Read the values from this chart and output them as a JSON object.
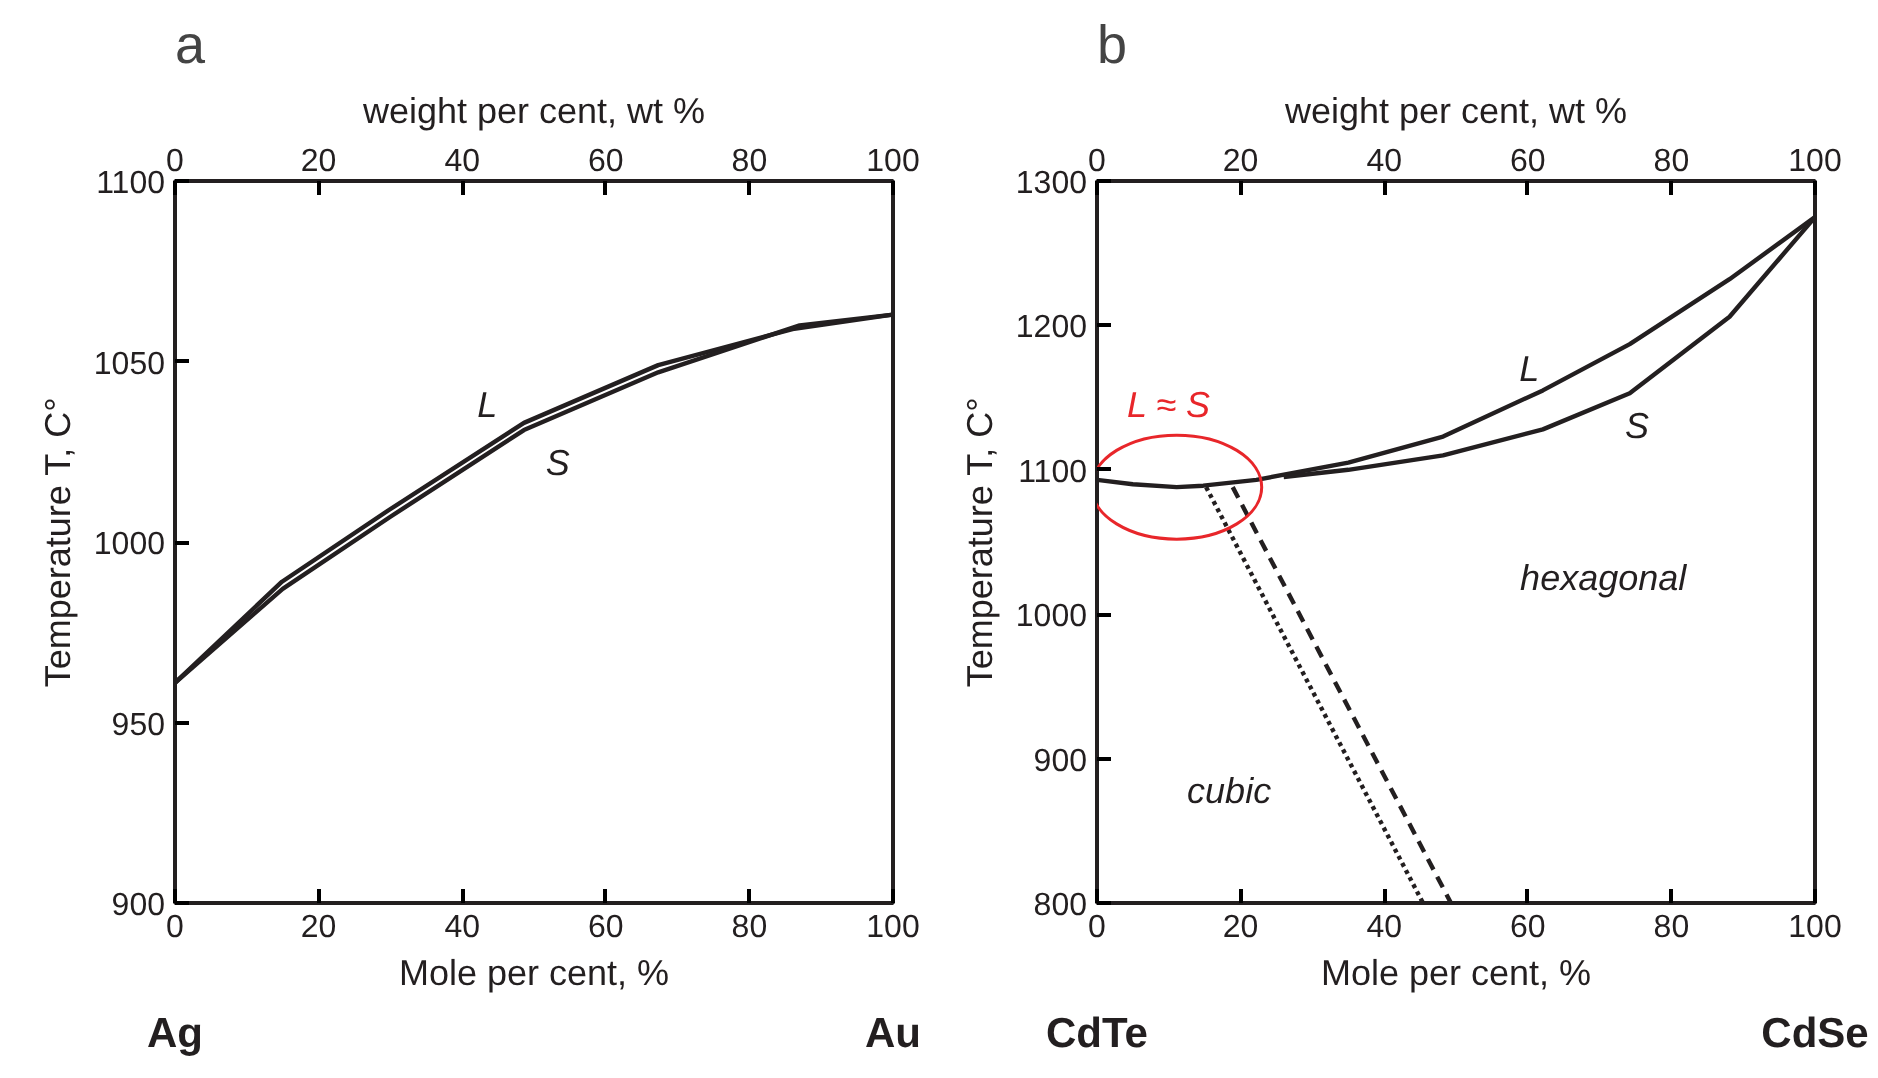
{
  "chart_data": [
    {
      "type": "line",
      "title": "a",
      "xlabel": "Mole per cent, %",
      "ylabel": "Temperature T, C°",
      "x2label": "weight per cent, wt %",
      "xlim": [
        0,
        100
      ],
      "xticks": [
        0,
        20,
        40,
        60,
        80,
        100
      ],
      "ylim": [
        900,
        1100
      ],
      "yticks": [
        900,
        950,
        1000,
        1050,
        1100
      ],
      "x2lim": [
        0,
        100
      ],
      "x2ticks": [
        0,
        20,
        40,
        60,
        80,
        100
      ],
      "grid": false,
      "marker": "none",
      "series": [
        {
          "color": "#231f20",
          "line_style": "solid",
          "x": [
            0,
            14.9,
            29.9,
            48.6,
            67.3,
            86.0,
            100
          ],
          "values": [
            961,
            989,
            1009,
            1033,
            1049,
            1059,
            1063
          ]
        },
        {
          "color": "#231f20",
          "line_style": "solid",
          "x": [
            0,
            15,
            30,
            48.6,
            67.3,
            87,
            100
          ],
          "values": [
            961,
            987,
            1007,
            1031,
            1047,
            1060,
            1063
          ]
        }
      ],
      "annotations": [
        "Ag",
        "Au",
        "L",
        "S"
      ]
    },
    {
      "type": "line",
      "title": "b",
      "xlabel": "Mole per cent, %",
      "ylabel": "Temperature T, C°",
      "x2label": "weight per cent, wt %",
      "xlim": [
        0,
        100
      ],
      "xticks": [
        0,
        20,
        40,
        60,
        80,
        100
      ],
      "ylim": [
        800,
        1300
      ],
      "yticks": [
        800,
        900,
        1000,
        1100,
        1200,
        1300
      ],
      "x2lim": [
        0,
        100
      ],
      "x2ticks": [
        0,
        20,
        40,
        60,
        80,
        100
      ],
      "grid": false,
      "marker": "none",
      "series": [
        {
          "color": "#231f20",
          "line_style": "solid",
          "x": [
            0,
            5,
            11.1,
            14.8,
            22.2,
            35,
            48.2,
            62.1,
            74.2,
            88.1,
            100
          ],
          "values": [
            1093,
            1090,
            1088,
            1089,
            1093,
            1105,
            1123,
            1155,
            1187,
            1232,
            1275
          ]
        },
        {
          "color": "#231f20",
          "line_style": "solid",
          "x": [
            26,
            35,
            48.2,
            62.1,
            74.2,
            88.1,
            100
          ],
          "values": [
            1095,
            1100,
            1110,
            1128,
            1153,
            1206,
            1275
          ]
        },
        {
          "color": "#231f20",
          "line_style": "dotted",
          "x": [
            15.2,
            45.4
          ],
          "values": [
            1088,
            800
          ]
        },
        {
          "color": "#231f20",
          "line_style": "dashed",
          "x": [
            18.9,
            49.3
          ],
          "values": [
            1088,
            800
          ]
        }
      ],
      "annotations": [
        "CdTe",
        "CdSe",
        "L ≈ S",
        "L",
        "S",
        "hexagonal",
        "cubic"
      ]
    }
  ]
}
